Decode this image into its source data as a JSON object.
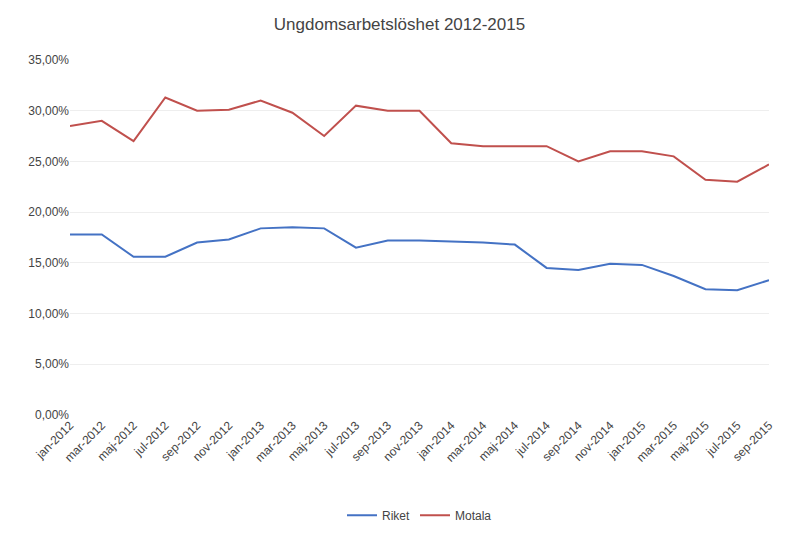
{
  "chart_data": {
    "type": "line",
    "title": "Ungdomsarbetslöshet 2012-2015",
    "categories": [
      "jan-2012",
      "mar-2012",
      "maj-2012",
      "jul-2012",
      "sep-2012",
      "nov-2012",
      "jan-2013",
      "mar-2013",
      "maj-2013",
      "jul-2013",
      "sep-2013",
      "nov-2013",
      "jan-2014",
      "mar-2014",
      "maj-2014",
      "jul-2014",
      "sep-2014",
      "nov-2014",
      "jan-2015",
      "mar-2015",
      "maj-2015",
      "jul-2015",
      "sep-2015"
    ],
    "series": [
      {
        "name": "Riket",
        "color": "#4472c4",
        "values": [
          0.178,
          0.178,
          0.156,
          0.156,
          0.17,
          0.173,
          0.184,
          0.185,
          0.184,
          0.165,
          0.172,
          0.172,
          0.171,
          0.17,
          0.168,
          0.145,
          0.143,
          0.149,
          0.148,
          0.137,
          0.124,
          0.123,
          0.133
        ]
      },
      {
        "name": "Motala",
        "color": "#c0504d",
        "values": [
          0.285,
          0.29,
          0.27,
          0.313,
          0.3,
          0.301,
          0.31,
          0.298,
          0.275,
          0.305,
          0.3,
          0.3,
          0.268,
          0.265,
          0.265,
          0.265,
          0.25,
          0.26,
          0.26,
          0.255,
          0.232,
          0.23,
          0.247
        ]
      }
    ],
    "ylim": [
      0.0,
      0.35
    ],
    "yticks": [
      {
        "value": 0.0,
        "label": "0,00%"
      },
      {
        "value": 0.05,
        "label": "5,00%"
      },
      {
        "value": 0.1,
        "label": "10,00%"
      },
      {
        "value": 0.15,
        "label": "15,00%"
      },
      {
        "value": 0.2,
        "label": "20,00%"
      },
      {
        "value": 0.25,
        "label": "25,00%"
      },
      {
        "value": 0.3,
        "label": "30,00%"
      },
      {
        "value": 0.35,
        "label": "35,00%"
      }
    ],
    "grid": true,
    "legend": "bottom"
  }
}
